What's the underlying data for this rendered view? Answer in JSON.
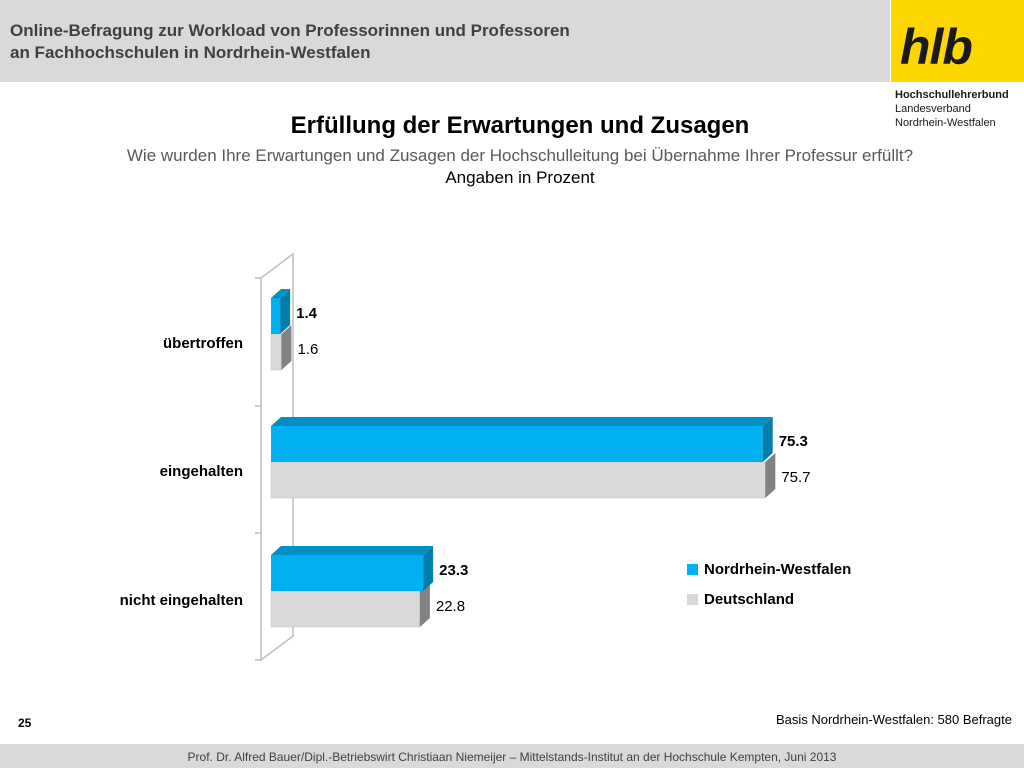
{
  "header": {
    "title_line1": "Online-Befragung  zur  Workload von Professorinnen und Professoren",
    "title_line2": "an Fachhochschulen in Nordrhein-Westfalen"
  },
  "logo": {
    "text": "hlb",
    "org_name": "Hochschullehrerbund",
    "org_line2": "Landesverband",
    "org_line3": "Nordrhein-Westfalen"
  },
  "colors": {
    "nrw": "#00b0f0",
    "deutschland": "#d9d9d9",
    "logo_bg": "#ffd700",
    "header_bg": "#d9d9d9"
  },
  "chart_data": {
    "type": "bar",
    "orientation": "horizontal",
    "title": "Erfüllung der Erwartungen und Zusagen",
    "subtitle": "Wie wurden Ihre Erwartungen und Zusagen der Hochschulleitung bei Übernahme Ihrer Professur erfüllt?",
    "unit_note": "Angaben in Prozent",
    "categories": [
      "übertroffen",
      "eingehalten",
      "nicht eingehalten"
    ],
    "series": [
      {
        "name": "Nordrhein-Westfalen",
        "values": [
          1.4,
          75.3,
          23.3
        ],
        "labels": [
          "1.4",
          "75.3",
          "23.3"
        ]
      },
      {
        "name": "Deutschland",
        "values": [
          1.6,
          75.7,
          22.8
        ],
        "labels": [
          "1.6",
          "75.7",
          "22.8"
        ]
      }
    ],
    "xlim": [
      0,
      80
    ],
    "grid": false,
    "legend": "bottom-right"
  },
  "footer": {
    "page_number": "25",
    "basis": "Basis Nordrhein-Westfalen: 580 Befragte",
    "credit": "Prof. Dr. Alfred Bauer/Dipl.-Betriebswirt Christiaan Niemeijer – Mittelstands-Institut an der Hochschule Kempten, Juni 2013"
  }
}
